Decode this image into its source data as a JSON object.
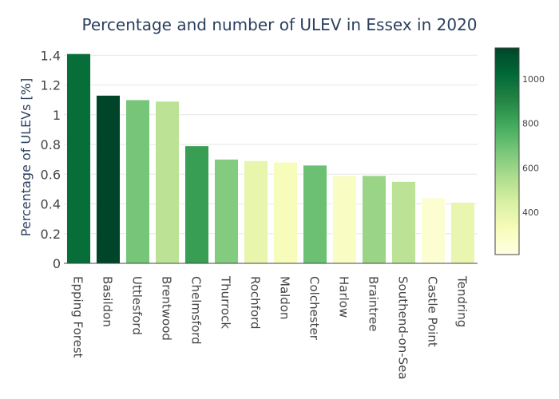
{
  "chart_data": {
    "type": "bar",
    "title": "Percentage and number of ULEV in Essex in 2020",
    "xlabel": "",
    "ylabel": "Percentage of ULEVs [%]",
    "ylim": [
      0,
      1.45
    ],
    "yticks": [
      0,
      0.2,
      0.4,
      0.6,
      0.8,
      1,
      1.2,
      1.4
    ],
    "ytick_labels": [
      "0",
      "0.2",
      "0.4",
      "0.6",
      "0.8",
      "1",
      "1.2",
      "1.4"
    ],
    "categories": [
      "Epping Forest",
      "Basildon",
      "Uttlesford",
      "Brentwood",
      "Chelmsford",
      "Thurrock",
      "Rochford",
      "Maldon",
      "Colchester",
      "Harlow",
      "Braintree",
      "Southend-on-Sea",
      "Castle Point",
      "Tendring"
    ],
    "values": [
      1.41,
      1.13,
      1.1,
      1.09,
      0.79,
      0.7,
      0.69,
      0.68,
      0.66,
      0.59,
      0.59,
      0.55,
      0.44,
      0.41
    ],
    "color_values": [
      1000,
      1140,
      680,
      520,
      830,
      650,
      390,
      320,
      700,
      300,
      600,
      520,
      260,
      380
    ],
    "grid": true,
    "colorbar": {
      "range": [
        210,
        1140
      ],
      "ticks": [
        400,
        600,
        800,
        1000
      ],
      "tick_labels": [
        "400",
        "600",
        "800",
        "1000"
      ],
      "colorscale": [
        "#ffffe5",
        "#f7fcb9",
        "#d9f0a3",
        "#addd8e",
        "#78c679",
        "#41ab5d",
        "#238443",
        "#006837",
        "#004529"
      ]
    }
  }
}
